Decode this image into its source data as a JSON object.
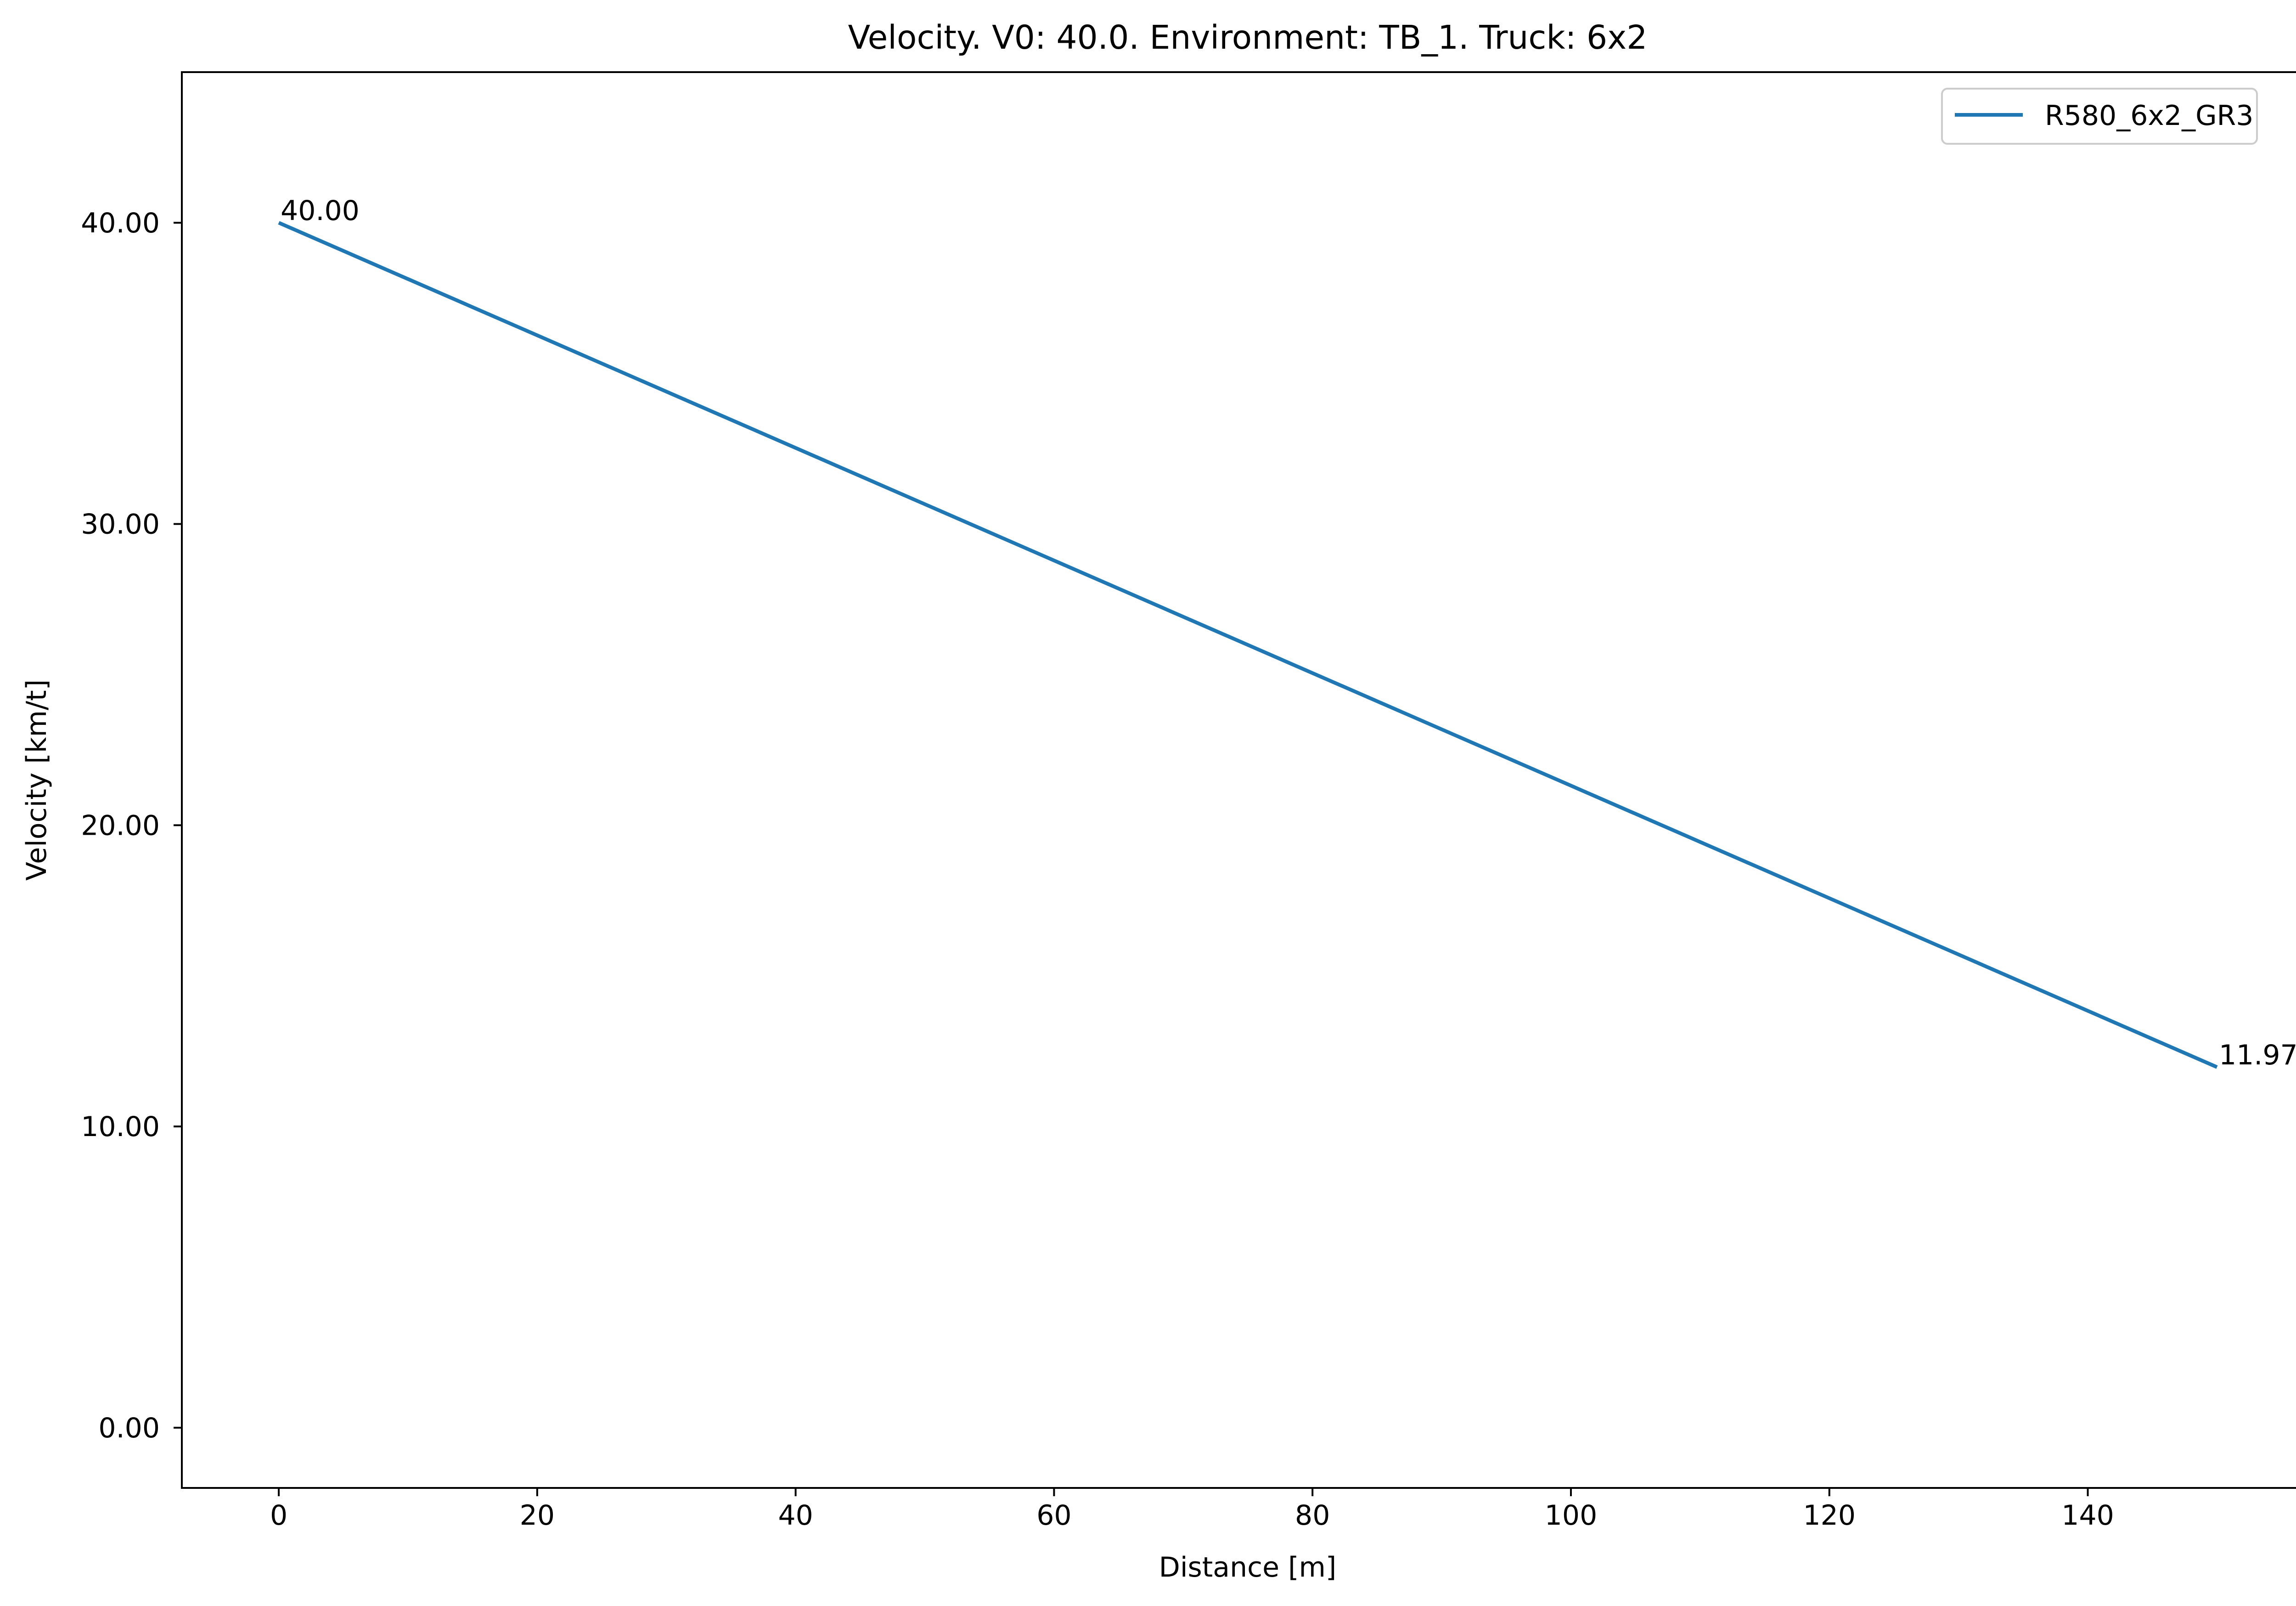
{
  "chart_data": {
    "type": "line",
    "title": "Velocity. V0: 40.0. Environment: TB_1. Truck: 6x2",
    "xlabel": "Distance [m]",
    "ylabel": "Velocity [km/t]",
    "xlim": [
      -7.5,
      157.5
    ],
    "ylim": [
      -2.0,
      45.0
    ],
    "x_ticks": [
      0,
      20,
      40,
      60,
      80,
      100,
      120,
      140
    ],
    "x_tick_labels": [
      "0",
      "20",
      "40",
      "60",
      "80",
      "100",
      "120",
      "140"
    ],
    "y_ticks": [
      0,
      10,
      20,
      30,
      40
    ],
    "y_tick_labels": [
      "0.00",
      "10.00",
      "20.00",
      "30.00",
      "40.00"
    ],
    "grid": false,
    "legend_position": "top-right",
    "series": [
      {
        "name": "R580_6x2_GR3",
        "color": "#1f77b4",
        "x": [
          0,
          150
        ],
        "y": [
          40.0,
          11.97
        ]
      }
    ],
    "annotations": [
      {
        "text": "40.00",
        "x": 0,
        "y": 40.0
      },
      {
        "text": "11.97",
        "x": 150,
        "y": 11.97
      }
    ]
  }
}
